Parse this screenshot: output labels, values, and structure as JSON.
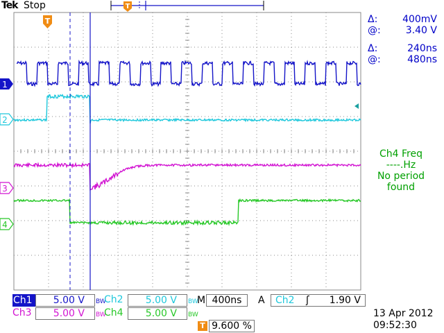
{
  "header": {
    "brand": "Tek",
    "run_state": "Stop"
  },
  "cursor_readout": {
    "delta_v_symbol": "Δ:",
    "delta_v": "400mV",
    "at_v_symbol": "@:",
    "at_v": "3.40 V",
    "delta_t_symbol": "Δ:",
    "delta_t": "240ns",
    "at_t_symbol": "@:",
    "at_t": "480ns"
  },
  "measurement": {
    "title": "Ch4 Freq",
    "value": "----.Hz",
    "status_line1": "No period",
    "status_line2": "found"
  },
  "channel_markers": [
    "1",
    "2",
    "3",
    "4"
  ],
  "trigger_marker": "T",
  "settings": {
    "ch1_label": "Ch1",
    "ch1_scale": "5.00 V",
    "ch2_label": "Ch2",
    "ch2_scale": "5.00 V",
    "ch3_label": "Ch3",
    "ch3_scale": "5.00 V",
    "ch4_label": "Ch4",
    "ch4_scale": "5.00 V",
    "bw_badge": "BW",
    "timebase_label": "M",
    "timebase": "400ns",
    "trigger_mode": "A",
    "trigger_source": "Ch2",
    "trigger_slope": "ʃ",
    "trigger_level": "1.90 V",
    "trigger_position": "9.600 %"
  },
  "timestamp": {
    "date": "13 Apr  2012",
    "time": "09:52:30"
  },
  "colors": {
    "ch1": "#1414c8",
    "ch2": "#1ec8dc",
    "ch3": "#d214d2",
    "ch4": "#28c828",
    "trigger": "#f08c14",
    "grid": "#8a8a8a",
    "measurement": "#00a000",
    "readout": "#0000c8"
  }
}
